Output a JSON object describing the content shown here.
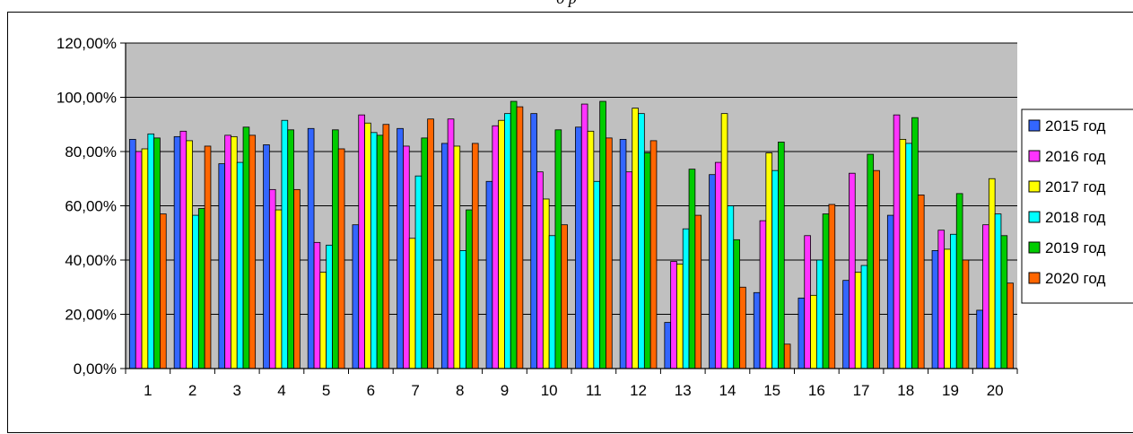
{
  "caption": "д р",
  "chart_data": {
    "type": "bar",
    "categories": [
      "1",
      "2",
      "3",
      "4",
      "5",
      "6",
      "7",
      "8",
      "9",
      "10",
      "11",
      "12",
      "13",
      "14",
      "15",
      "16",
      "17",
      "18",
      "19",
      "20"
    ],
    "y_ticks": [
      "0,00%",
      "20,00%",
      "40,00%",
      "60,00%",
      "80,00%",
      "100,00%",
      "120,00%"
    ],
    "ylim": [
      0,
      120
    ],
    "grid": true,
    "plot_background": "#c0c0c0",
    "legend_position": "right",
    "series": [
      {
        "name": "2015 год",
        "color": "#3366ff",
        "values": [
          84.5,
          85.5,
          75.5,
          82.5,
          88.5,
          53,
          88.5,
          83,
          69,
          94,
          89,
          84.5,
          17,
          71.5,
          28,
          26,
          32.5,
          56.5,
          43.5,
          21.5
        ]
      },
      {
        "name": "2016 год",
        "color": "#ff33ff",
        "values": [
          80,
          87.5,
          86,
          66,
          46.5,
          93.5,
          82,
          92,
          89.5,
          72.5,
          97.5,
          72.5,
          39.5,
          76,
          54.5,
          49,
          72,
          93.5,
          51,
          53
        ]
      },
      {
        "name": "2017 год",
        "color": "#ffff00",
        "values": [
          81,
          84,
          85.5,
          58.5,
          35.5,
          90.5,
          48,
          82,
          91.5,
          62.5,
          87.5,
          96,
          38.5,
          94,
          79.5,
          27,
          35.5,
          84.5,
          44,
          70
        ]
      },
      {
        "name": "2018 год",
        "color": "#00ffff",
        "values": [
          86.5,
          56.5,
          76,
          91.5,
          45.5,
          87,
          71,
          43.5,
          94,
          49,
          69,
          94,
          51.5,
          60,
          73,
          40,
          38,
          83,
          49.5,
          57
        ]
      },
      {
        "name": "2019 год",
        "color": "#00cc00",
        "values": [
          85,
          59,
          89,
          88,
          88,
          86,
          85,
          58.5,
          98.5,
          88,
          98.5,
          79.5,
          73.5,
          47.5,
          83.5,
          57,
          79,
          92.5,
          64.5,
          49
        ]
      },
      {
        "name": "2020 год",
        "color": "#ff6600",
        "values": [
          57,
          82,
          86,
          66,
          81,
          90,
          92,
          83,
          96.5,
          53,
          85,
          84,
          56.5,
          30,
          9,
          60.5,
          73,
          64,
          40,
          31.5
        ]
      }
    ]
  }
}
